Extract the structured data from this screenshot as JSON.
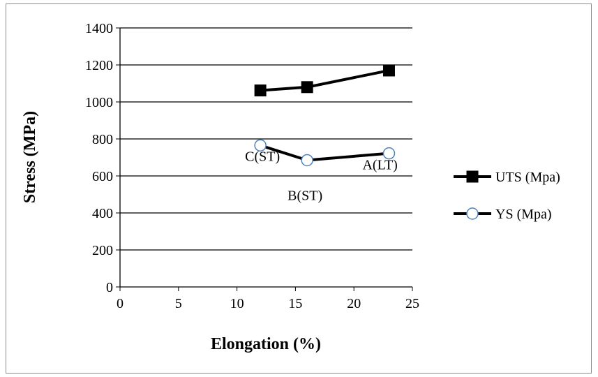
{
  "chart_data": {
    "type": "scatter",
    "title": "",
    "xlabel": "Elongation (%)",
    "ylabel": "Stress (MPa)",
    "xlim": [
      0,
      25
    ],
    "ylim": [
      0,
      1400
    ],
    "x_ticks": [
      "0",
      "5",
      "10",
      "15",
      "20",
      "25"
    ],
    "y_ticks": [
      "0",
      "200",
      "400",
      "600",
      "800",
      "1000",
      "1200",
      "1400"
    ],
    "grid": "horizontal",
    "legend_position": "right",
    "series": [
      {
        "name": "UTS (Mpa)",
        "marker": "square-filled",
        "color": "#000000",
        "x": [
          12,
          16,
          23
        ],
        "y": [
          1062,
          1080,
          1170
        ]
      },
      {
        "name": "YS (Mpa)",
        "marker": "circle-open",
        "color": "#000000",
        "marker_fill": "#ffffff",
        "marker_edge": "#4f81bd",
        "x": [
          12,
          16,
          23
        ],
        "y": [
          765,
          685,
          722
        ]
      }
    ],
    "annotations": [
      {
        "text": "C(ST)",
        "x": 12,
        "y": 765
      },
      {
        "text": "B(ST)",
        "x": 16,
        "y": 685
      },
      {
        "text": "A(LT)",
        "x": 23,
        "y": 722
      }
    ]
  }
}
